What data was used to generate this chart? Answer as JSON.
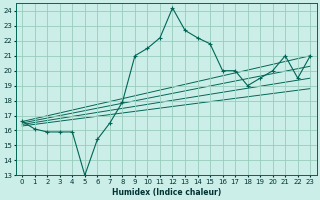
{
  "xlabel": "Humidex (Indice chaleur)",
  "bg_color": "#cceee8",
  "grid_color": "#99ccbb",
  "line_color": "#006655",
  "xlim": [
    -0.5,
    23.5
  ],
  "ylim": [
    13,
    24.5
  ],
  "xticks": [
    0,
    1,
    2,
    3,
    4,
    5,
    6,
    7,
    8,
    9,
    10,
    11,
    12,
    13,
    14,
    15,
    16,
    17,
    18,
    19,
    20,
    21,
    22,
    23
  ],
  "yticks": [
    13,
    14,
    15,
    16,
    17,
    18,
    19,
    20,
    21,
    22,
    23,
    24
  ],
  "main_x": [
    0,
    1,
    2,
    3,
    4,
    5,
    6,
    7,
    8,
    9,
    10,
    11,
    12,
    13,
    14,
    15,
    16,
    17,
    18,
    19,
    20,
    21,
    22,
    23
  ],
  "main_y": [
    16.6,
    16.1,
    15.9,
    15.9,
    15.9,
    13.0,
    15.4,
    16.5,
    17.9,
    21.0,
    21.5,
    22.2,
    24.2,
    22.7,
    22.2,
    21.8,
    20.0,
    20.0,
    19.0,
    19.5,
    20.0,
    21.0,
    19.5,
    21.0
  ],
  "straight_lines": [
    {
      "x": [
        0,
        23
      ],
      "y": [
        16.6,
        21.0
      ]
    },
    {
      "x": [
        0,
        23
      ],
      "y": [
        16.5,
        20.3
      ]
    },
    {
      "x": [
        0,
        23
      ],
      "y": [
        16.4,
        19.5
      ]
    },
    {
      "x": [
        0,
        23
      ],
      "y": [
        16.3,
        18.8
      ]
    }
  ],
  "xlabel_fontsize": 5.5,
  "tick_fontsize": 5.0
}
